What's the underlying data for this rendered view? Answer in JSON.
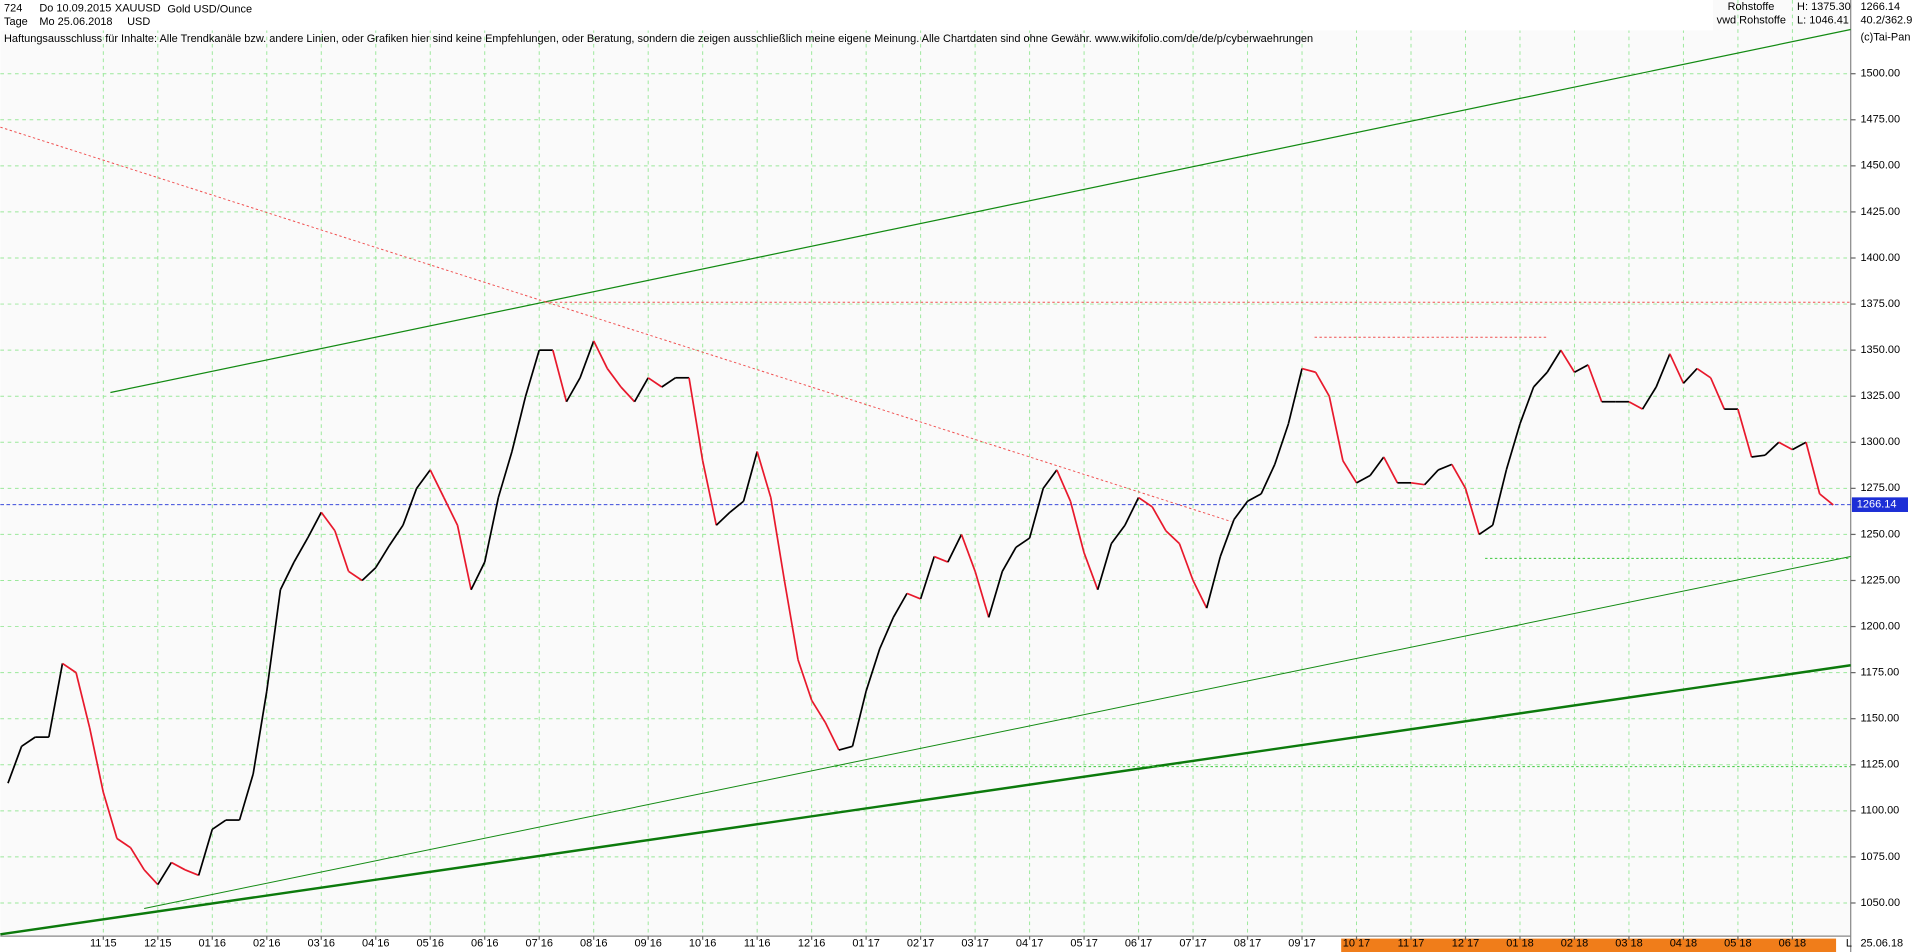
{
  "chart_data": {
    "type": "line",
    "title": "Gold USD/Ounce",
    "header": {
      "bars": "724",
      "start": "Do 10.09.2015",
      "symbol": "XAUUSD",
      "period": "Tage",
      "end": "Mo 25.06.2018",
      "currency": "USD",
      "group": "Rohstoffe",
      "high": "H: 1375.30",
      "source": "vwd Rohstoffe",
      "low": "L: 1046.41",
      "ratio": "40.2/362.9",
      "copyright": "(c)Tai-Pan",
      "disclaimer": "Haftungsausschluss für Inhalte: Alle Trendkanäle bzw. andere Linien, oder Grafiken hier sind keine Empfehlungen, oder Beratung, sondern die zeigen ausschließlich meine eigene Meinung. Alle Chartdaten sind ohne Gewähr.  www.wikifolio.com/de/de/p/cyberwaehrungen",
      "axis_end_mark": "L",
      "axis_end_date": "25.06.18"
    },
    "x": [
      0.25,
      0.5,
      0.75,
      1,
      1.25,
      1.5,
      1.75,
      2,
      2.25,
      2.5,
      2.75,
      3,
      3.25,
      3.5,
      3.75,
      4,
      4.25,
      4.5,
      4.75,
      5,
      5.25,
      5.5,
      5.75,
      6,
      6.25,
      6.5,
      6.75,
      7,
      7.25,
      7.5,
      7.75,
      8,
      8.25,
      8.5,
      8.75,
      9,
      9.25,
      9.5,
      9.75,
      10,
      10.25,
      10.5,
      10.75,
      11,
      11.25,
      11.5,
      11.75,
      12,
      12.25,
      12.5,
      12.75,
      13,
      13.25,
      13.5,
      13.75,
      14,
      14.25,
      14.5,
      14.75,
      15,
      15.25,
      15.5,
      15.75,
      16,
      16.25,
      16.5,
      16.75,
      17,
      17.25,
      17.5,
      17.75,
      18,
      18.25,
      18.5,
      18.75,
      19,
      19.25,
      19.5,
      19.75,
      20,
      20.25,
      20.5,
      20.75,
      21,
      21.25,
      21.5,
      21.75,
      22,
      22.25,
      22.5,
      22.75,
      23,
      23.25,
      23.5,
      23.75,
      24,
      24.25,
      24.5,
      24.75,
      25,
      25.25,
      25.5,
      25.75,
      26,
      26.25,
      26.5,
      26.75,
      27,
      27.25,
      27.5,
      27.75,
      28,
      28.25,
      28.5,
      28.75,
      29,
      29.25,
      29.5,
      29.75,
      30,
      30.25,
      30.5,
      30.75,
      31,
      31.25,
      31.5,
      31.75,
      32,
      32.25,
      32.5,
      32.75,
      33,
      33.25,
      33.5,
      33.75
    ],
    "series": [
      {
        "name": "XAUUSD",
        "up_color": "#000000",
        "down_color": "#e8192c",
        "values": [
          1115,
          1135,
          1140,
          1140,
          1180,
          1175,
          1145,
          1110,
          1085,
          1080,
          1068,
          1060,
          1072,
          1068,
          1065,
          1090,
          1095,
          1095,
          1120,
          1165,
          1220,
          1235,
          1248,
          1262,
          1252,
          1230,
          1225,
          1232,
          1244,
          1255,
          1275,
          1285,
          1270,
          1255,
          1220,
          1235,
          1270,
          1295,
          1325,
          1350,
          1350,
          1322,
          1335,
          1355,
          1340,
          1330,
          1322,
          1335,
          1330,
          1335,
          1335,
          1290,
          1255,
          1262,
          1268,
          1295,
          1270,
          1225,
          1182,
          1160,
          1148,
          1133,
          1135,
          1165,
          1188,
          1205,
          1218,
          1215,
          1238,
          1235,
          1250,
          1230,
          1205,
          1230,
          1243,
          1248,
          1275,
          1285,
          1268,
          1240,
          1220,
          1245,
          1255,
          1270,
          1265,
          1252,
          1245,
          1225,
          1210,
          1238,
          1258,
          1268,
          1272,
          1288,
          1310,
          1340,
          1338,
          1325,
          1290,
          1278,
          1282,
          1292,
          1278,
          1278,
          1277,
          1285,
          1288,
          1275,
          1250,
          1255,
          1285,
          1310,
          1330,
          1338,
          1350,
          1338,
          1342,
          1322,
          1322,
          1322,
          1318,
          1330,
          1348,
          1332,
          1340,
          1335,
          1318,
          1318,
          1292,
          1293,
          1300,
          1296,
          1300,
          1272,
          1266
        ]
      }
    ],
    "last_price": 1266.14,
    "last_price_color": "#1d2fd6",
    "trend_lines": [
      {
        "color": "#128a12",
        "width": 1,
        "style": "solid",
        "x": [
          2.13,
          34.07
        ],
        "values": [
          1327,
          1524
        ]
      },
      {
        "color": "#128a12",
        "width": 0.8,
        "style": "solid",
        "x": [
          2.75,
          34.07
        ],
        "values": [
          1047,
          1238
        ]
      },
      {
        "color": "#0c7a0c",
        "width": 2,
        "style": "solid",
        "x": [
          0.11,
          34.07
        ],
        "values": [
          1033,
          1179
        ]
      },
      {
        "color": "#f05050",
        "width": 0.8,
        "style": "dotted",
        "x": [
          0.11,
          22.7
        ],
        "values": [
          1471,
          1257
        ]
      },
      {
        "color": "#f05050",
        "width": 0.8,
        "style": "dotted",
        "x": [
          10.11,
          34.07
        ],
        "values": [
          1376,
          1376
        ]
      },
      {
        "color": "#f05050",
        "width": 0.8,
        "style": "dotted",
        "x": [
          24.23,
          28.52
        ],
        "values": [
          1357,
          1357
        ]
      },
      {
        "color": "#3cc83c",
        "width": 0.8,
        "style": "dotted",
        "x": [
          27.36,
          34.07
        ],
        "values": [
          1237,
          1237
        ]
      },
      {
        "color": "#3cc83c",
        "width": 0.8,
        "style": "dotted",
        "x": [
          15.43,
          34.07
        ],
        "values": [
          1124,
          1124
        ]
      }
    ],
    "xlim": [
      0.11,
      34.07
    ],
    "xticks": [
      {
        "value": 2,
        "label": "11 15"
      },
      {
        "value": 3,
        "label": "12 15"
      },
      {
        "value": 4,
        "label": "01 16"
      },
      {
        "value": 5,
        "label": "02 16"
      },
      {
        "value": 6,
        "label": "03 16"
      },
      {
        "value": 7,
        "label": "04 16"
      },
      {
        "value": 8,
        "label": "05 16"
      },
      {
        "value": 9,
        "label": "06 16"
      },
      {
        "value": 10,
        "label": "07 16"
      },
      {
        "value": 11,
        "label": "08 16"
      },
      {
        "value": 12,
        "label": "09 16"
      },
      {
        "value": 13,
        "label": "10 16"
      },
      {
        "value": 14,
        "label": "11 16"
      },
      {
        "value": 15,
        "label": "12 16"
      },
      {
        "value": 16,
        "label": "01 17"
      },
      {
        "value": 17,
        "label": "02 17"
      },
      {
        "value": 18,
        "label": "03 17"
      },
      {
        "value": 19,
        "label": "04 17"
      },
      {
        "value": 20,
        "label": "05 17"
      },
      {
        "value": 21,
        "label": "06 17"
      },
      {
        "value": 22,
        "label": "07 17"
      },
      {
        "value": 23,
        "label": "08 17"
      },
      {
        "value": 24,
        "label": "09 17"
      },
      {
        "value": 25,
        "label": "10 17"
      },
      {
        "value": 26,
        "label": "11 17"
      },
      {
        "value": 27,
        "label": "12 17"
      },
      {
        "value": 28,
        "label": "01 18"
      },
      {
        "value": 29,
        "label": "02 18"
      },
      {
        "value": 30,
        "label": "03 18"
      },
      {
        "value": 31,
        "label": "04 18"
      },
      {
        "value": 32,
        "label": "05 18"
      },
      {
        "value": 33,
        "label": "06 18"
      }
    ],
    "ylim": [
      1032,
      1540
    ],
    "yticks": [
      {
        "value": 1050,
        "label": "1050.00"
      },
      {
        "value": 1075,
        "label": "1075.00"
      },
      {
        "value": 1100,
        "label": "1100.00"
      },
      {
        "value": 1125,
        "label": "1125.00"
      },
      {
        "value": 1150,
        "label": "1150.00"
      },
      {
        "value": 1175,
        "label": "1175.00"
      },
      {
        "value": 1200,
        "label": "1200.00"
      },
      {
        "value": 1225,
        "label": "1225.00"
      },
      {
        "value": 1250,
        "label": "1250.00"
      },
      {
        "value": 1275,
        "label": "1275.00"
      },
      {
        "value": 1300,
        "label": "1300.00"
      },
      {
        "value": 1325,
        "label": "1325.00"
      },
      {
        "value": 1350,
        "label": "1350.00"
      },
      {
        "value": 1375,
        "label": "1375.00"
      },
      {
        "value": 1400,
        "label": "1400.00"
      },
      {
        "value": 1425,
        "label": "1425.00"
      },
      {
        "value": 1450,
        "label": "1450.00"
      },
      {
        "value": 1475,
        "label": "1475.00"
      },
      {
        "value": 1500,
        "label": "1500.00"
      }
    ],
    "grid": true,
    "grid_color": "#9be89b"
  }
}
